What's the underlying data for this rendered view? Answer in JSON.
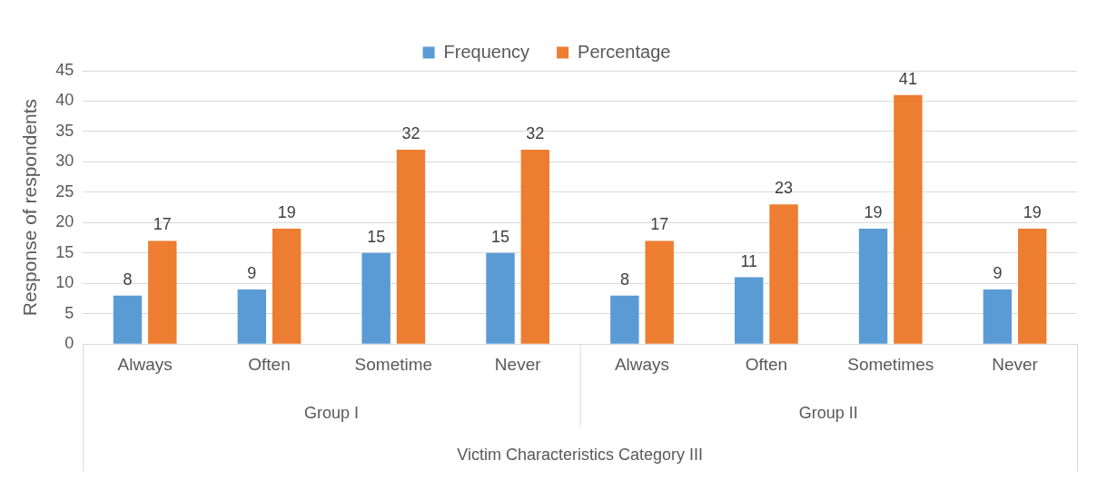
{
  "chart_data": {
    "type": "bar",
    "categories": [
      "Always",
      "Often",
      "Sometime",
      "Never",
      "Always",
      "Often",
      "Sometimes",
      "Never"
    ],
    "series": [
      {
        "name": "Frequency",
        "color": "#5b9bd5",
        "values": [
          8,
          9,
          15,
          15,
          8,
          11,
          19,
          9
        ]
      },
      {
        "name": "Percentage",
        "color": "#ed7d31",
        "values": [
          17,
          19,
          32,
          32,
          17,
          23,
          41,
          19
        ]
      }
    ],
    "ylabel": "Response of respondents",
    "xlabel": "Victim Characteristics Category III",
    "annotations": [
      "Group I",
      "Group II"
    ],
    "ylim": [
      0,
      45
    ],
    "yticks": [
      0,
      5,
      10,
      15,
      20,
      25,
      30,
      35,
      40,
      45
    ],
    "grid": "y",
    "legend": "top",
    "data_labels": true
  }
}
